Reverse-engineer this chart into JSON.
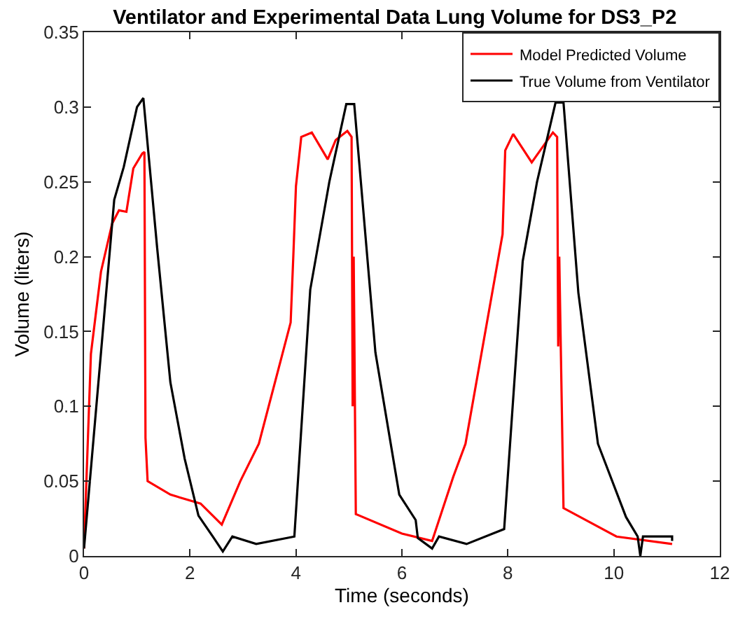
{
  "chart_data": {
    "type": "line",
    "title": "Ventilator and Experimental Data Lung Volume for DS3_P2",
    "xlabel": "Time (seconds)",
    "ylabel": "Volume (liters)",
    "xlim": [
      0,
      12
    ],
    "xticks": [
      0,
      2,
      4,
      6,
      8,
      10,
      12
    ],
    "ylim": [
      0,
      0.35
    ],
    "yticks": [
      0,
      0.05,
      0.1,
      0.15,
      0.2,
      0.25,
      0.3,
      0.35
    ],
    "grid": false,
    "legend": "top right",
    "line_style": "solid",
    "marker": "none",
    "series": [
      {
        "name": "Model Predicted Volume",
        "color": "#ff0000",
        "x": [
          0,
          0.13,
          0.32,
          0.53,
          0.66,
          0.8,
          0.93,
          1.1,
          1.14,
          1.16,
          1.2,
          1.63,
          2.2,
          2.6,
          2.95,
          3.3,
          3.9,
          3.95,
          4.0,
          4.1,
          4.3,
          4.6,
          4.75,
          4.97,
          5.05,
          5.07,
          5.09,
          5.13,
          6.0,
          6.57,
          6.97,
          7.2,
          7.9,
          7.95,
          8.1,
          8.45,
          8.85,
          8.93,
          8.95,
          8.97,
          9.05,
          10.05,
          11.1
        ],
        "values": [
          0.005,
          0.135,
          0.19,
          0.222,
          0.231,
          0.23,
          0.259,
          0.269,
          0.27,
          0.079,
          0.05,
          0.041,
          0.035,
          0.021,
          0.05,
          0.075,
          0.156,
          0.2,
          0.247,
          0.28,
          0.283,
          0.265,
          0.278,
          0.284,
          0.28,
          0.1,
          0.2,
          0.028,
          0.015,
          0.01,
          0.053,
          0.075,
          0.215,
          0.271,
          0.282,
          0.263,
          0.283,
          0.28,
          0.14,
          0.2,
          0.032,
          0.013,
          0.008
        ]
      },
      {
        "name": "True Volume from Ventilator",
        "color": "#000000",
        "x": [
          0,
          0.57,
          0.75,
          1.0,
          1.12,
          1.38,
          1.63,
          1.9,
          2.16,
          2.45,
          2.62,
          2.8,
          3.25,
          3.97,
          4.27,
          4.63,
          4.95,
          5.1,
          5.5,
          5.95,
          6.26,
          6.3,
          6.57,
          6.7,
          7.22,
          7.93,
          8.28,
          8.55,
          8.9,
          9.05,
          9.33,
          9.7,
          10.23,
          10.45,
          10.5,
          10.55,
          11.1,
          11.1
        ],
        "values": [
          0.005,
          0.238,
          0.26,
          0.3,
          0.306,
          0.206,
          0.116,
          0.065,
          0.027,
          0.012,
          0.003,
          0.013,
          0.008,
          0.013,
          0.178,
          0.25,
          0.302,
          0.302,
          0.136,
          0.041,
          0.024,
          0.012,
          0.005,
          0.013,
          0.008,
          0.018,
          0.197,
          0.25,
          0.303,
          0.303,
          0.176,
          0.075,
          0.026,
          0.013,
          0.0,
          0.013,
          0.013,
          0.01
        ]
      }
    ]
  }
}
